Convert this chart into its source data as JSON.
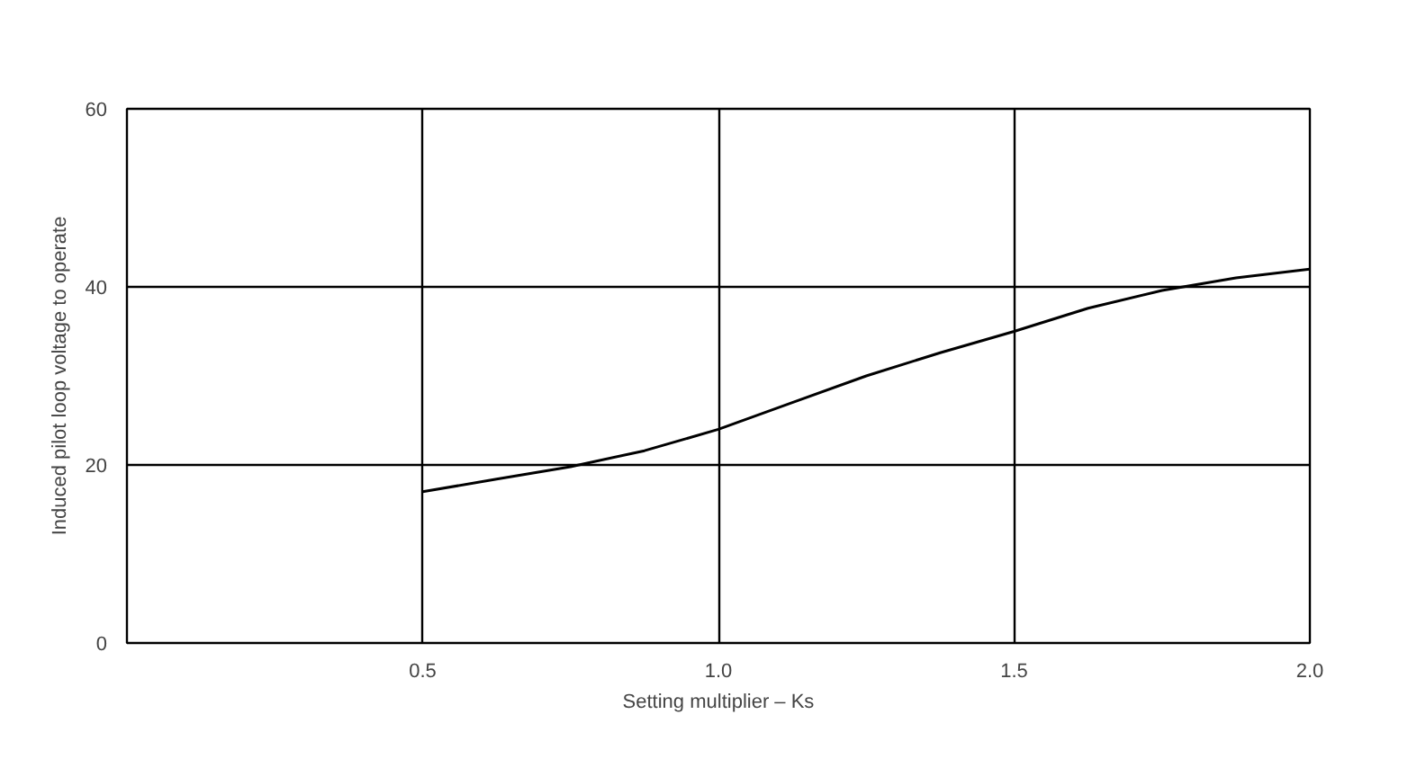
{
  "chart_data": {
    "type": "line",
    "xlabel": "Setting multiplier – Ks",
    "ylabel": "Induced pilot loop voltage to operate",
    "x": [
      0.5,
      0.625,
      0.75,
      0.875,
      1.0,
      1.125,
      1.25,
      1.375,
      1.5,
      1.625,
      1.75,
      1.875,
      2.0
    ],
    "series": [
      {
        "color": "#000000",
        "values": [
          17,
          18.4,
          19.8,
          21.6,
          24,
          27,
          30,
          32.6,
          35,
          37.6,
          39.6,
          41,
          42
        ]
      }
    ],
    "xlim": [
      0,
      2.0
    ],
    "ylim": [
      0,
      60
    ],
    "xticks": [
      0.5,
      {
        "value": 1.0,
        "label": "1.0"
      },
      1.5,
      {
        "value": 2.0,
        "label": "2.0"
      }
    ],
    "yticks": [
      0,
      20,
      40,
      60
    ],
    "grid": true,
    "marker": "none",
    "line_style": "solid"
  }
}
